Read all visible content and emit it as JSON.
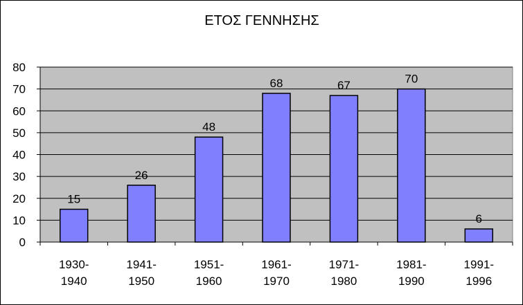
{
  "chart_data": {
    "type": "bar",
    "title": "ΕΤΟΣ ΓΕΝΝΗΣΗΣ",
    "xlabel": "",
    "ylabel": "",
    "categories": [
      [
        "1930-",
        "1940"
      ],
      [
        "1941-",
        "1950"
      ],
      [
        "1951-",
        "1960"
      ],
      [
        "1961-",
        "1970"
      ],
      [
        "1971-",
        "1980"
      ],
      [
        "1981-",
        "1990"
      ],
      [
        "1991-",
        "1996"
      ]
    ],
    "values": [
      15,
      26,
      48,
      68,
      67,
      70,
      6
    ],
    "ylim": [
      0,
      80
    ],
    "yticks": [
      0,
      10,
      20,
      30,
      40,
      50,
      60,
      70,
      80
    ],
    "grid": true,
    "legend": "none",
    "data_labels": true,
    "colors": {
      "plot_background": "#c0c0c0",
      "bar_fill": "#8080ff",
      "bar_stroke": "#000000",
      "gridline": "#000000"
    }
  }
}
